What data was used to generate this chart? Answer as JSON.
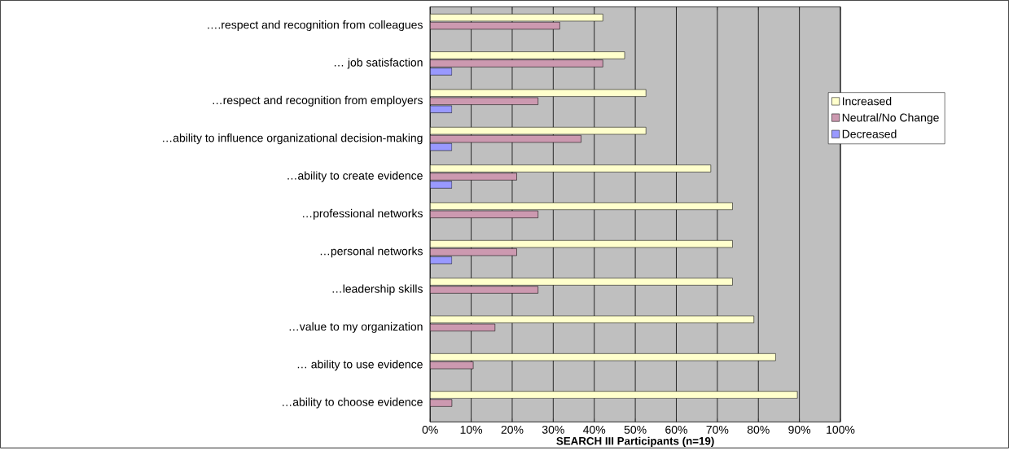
{
  "chart_data": {
    "type": "bar",
    "orientation": "horizontal",
    "xlabel": "SEARCH III Participants (n=19)",
    "categories": [
      "….respect and recognition from colleagues",
      "… job satisfaction",
      "…respect and recognition from employers",
      "…ability to influence organizational decision-making",
      "…ability to create evidence",
      "…professional networks",
      "…personal networks",
      "…leadership skills",
      "…value to my organization",
      "… ability to use evidence",
      "…ability to choose evidence"
    ],
    "series": [
      {
        "name": "Increased",
        "color": "#ffffcc",
        "values": [
          42.1,
          47.4,
          52.6,
          52.6,
          68.4,
          73.7,
          73.7,
          73.7,
          78.9,
          84.2,
          89.5
        ]
      },
      {
        "name": "Neutral/No Change",
        "color": "#cc99b0",
        "values": [
          31.6,
          42.1,
          26.3,
          36.8,
          21.1,
          26.3,
          21.1,
          26.3,
          15.8,
          10.5,
          5.3
        ]
      },
      {
        "name": "Decreased",
        "color": "#9999ff",
        "values": [
          0,
          5.3,
          5.3,
          5.3,
          5.3,
          0,
          5.3,
          0,
          0,
          0,
          0
        ]
      }
    ],
    "xlim": [
      0,
      100
    ],
    "xticks": [
      {
        "value": 0,
        "label": "0%"
      },
      {
        "value": 10,
        "label": "10%"
      },
      {
        "value": 20,
        "label": "20%"
      },
      {
        "value": 30,
        "label": "30%"
      },
      {
        "value": 40,
        "label": "40%"
      },
      {
        "value": 50,
        "label": "50%"
      },
      {
        "value": 60,
        "label": "60%"
      },
      {
        "value": 70,
        "label": "70%"
      },
      {
        "value": 80,
        "label": "80%"
      },
      {
        "value": 90,
        "label": "90%"
      },
      {
        "value": 100,
        "label": "100%"
      }
    ],
    "grid": "x",
    "legend": "right"
  }
}
